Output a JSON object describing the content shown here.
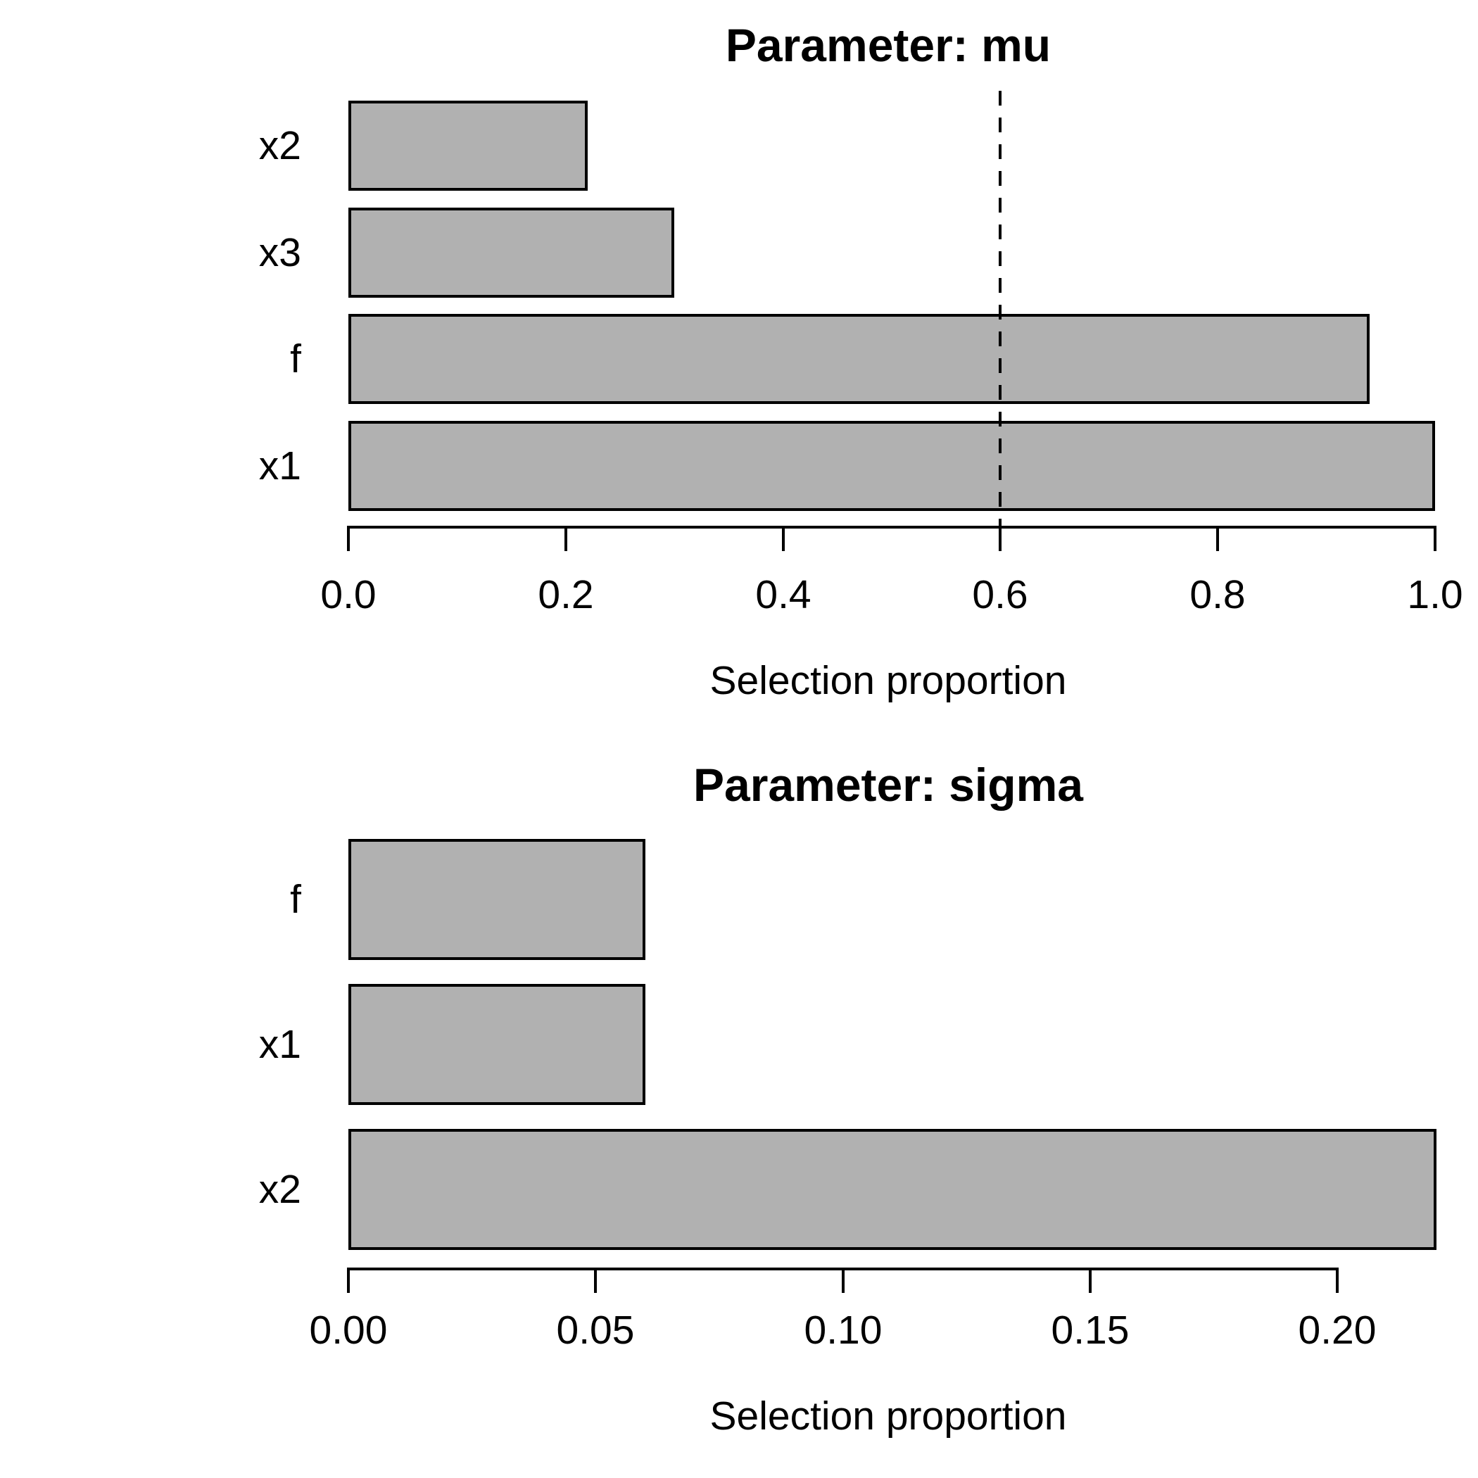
{
  "figure": {
    "background": "#ffffff",
    "text_color": "#000000"
  },
  "chart_data": [
    {
      "type": "bar",
      "orientation": "horizontal",
      "title": "Parameter: mu",
      "xlabel": "Selection proportion",
      "categories": [
        "x2",
        "x3",
        "f",
        "x1"
      ],
      "values": [
        0.22,
        0.3,
        0.94,
        1.0
      ],
      "xlim": [
        0.0,
        1.0
      ],
      "xticks": [
        0.0,
        0.2,
        0.4,
        0.6,
        0.8,
        1.0
      ],
      "xtick_labels": [
        "0.0",
        "0.2",
        "0.4",
        "0.6",
        "0.8",
        "1.0"
      ],
      "reference_line_x": 0.6,
      "reference_line_style": "dashed",
      "bar_fill": "#b1b1b1",
      "bar_border": "#000000",
      "grid": false,
      "legend": null
    },
    {
      "type": "bar",
      "orientation": "horizontal",
      "title": "Parameter: sigma",
      "xlabel": "Selection proportion",
      "categories": [
        "f",
        "x1",
        "x2"
      ],
      "values": [
        0.06,
        0.06,
        0.22
      ],
      "xlim": [
        0.0,
        0.22
      ],
      "xticks": [
        0.0,
        0.05,
        0.1,
        0.15,
        0.2
      ],
      "xtick_labels": [
        "0.00",
        "0.05",
        "0.10",
        "0.15",
        "0.20"
      ],
      "reference_line_x": null,
      "reference_line_style": null,
      "bar_fill": "#b1b1b1",
      "bar_border": "#000000",
      "grid": false,
      "legend": null
    }
  ]
}
